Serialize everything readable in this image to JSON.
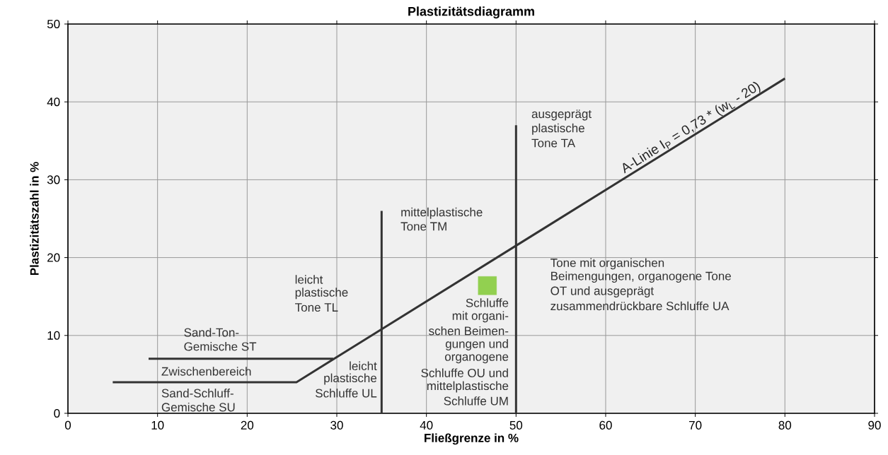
{
  "chart_data": {
    "type": "line",
    "title": "Plastizitätsdiagramm",
    "xlabel": "Fließgrenze in %",
    "ylabel": "Plastizitätszahl in %",
    "xlim": [
      0,
      90
    ],
    "xticks": [
      0,
      10,
      20,
      30,
      40,
      50,
      60,
      70,
      80,
      90
    ],
    "ylim": [
      0,
      50
    ],
    "yticks": [
      0,
      10,
      20,
      30,
      40,
      50
    ],
    "grid": true,
    "marker": "none",
    "line_style": "solid",
    "series": [
      {
        "color": "#333333",
        "x": [
          5,
          25.5,
          80
        ],
        "values": [
          4,
          4,
          43
        ]
      },
      {
        "color": "#333333",
        "x": [
          9,
          29.6
        ],
        "values": [
          7,
          7
        ]
      },
      {
        "color": "#333333",
        "x": [
          35,
          35
        ],
        "values": [
          0,
          26
        ]
      },
      {
        "color": "#333333",
        "x": [
          50,
          50
        ],
        "values": [
          0,
          37
        ]
      },
      {
        "type": "scatter",
        "marker": "square",
        "color": "#92d050",
        "x": [
          46.8
        ],
        "values": [
          16.4
        ]
      }
    ],
    "annotations": [
      "Sand-Ton-",
      "Gemische ST",
      "Zwischenbereich",
      "Sand-Schluff-",
      "Gemische SU",
      "leicht",
      "plastische",
      "Tone TL",
      "leicht",
      "plastische",
      "Schluffe UL",
      "Schluffe",
      "mit organi-",
      "schen Beimen-",
      "gungen und",
      "organogene",
      "Schluffe OU und",
      "mittelplastische",
      "Schluffe UM",
      "mittelplastische",
      "Tone TM",
      "ausgeprägt",
      "plastische",
      "Tone TA",
      "Tone mit organischen",
      "Beimengungen, organogene Tone",
      "OT und ausgeprägt",
      "zusammendrückbare Schluffe UA",
      {
        "text": "A-Linie I$_{P}$ = 0,73 * (w$_{L}$ - 20)",
        "x": 70,
        "y": 35.8
      }
    ]
  }
}
